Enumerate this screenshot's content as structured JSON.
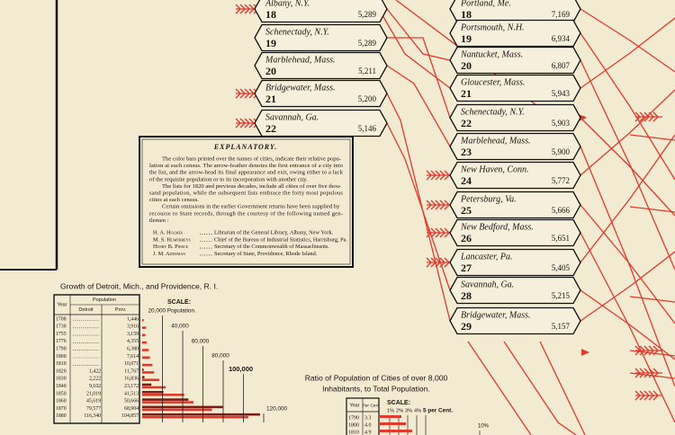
{
  "left_column": {
    "cities": [
      {
        "name": "Albany, N.Y.",
        "rank": 18,
        "population": "5,289"
      },
      {
        "name": "Schenectady, N.Y.",
        "rank": 19,
        "population": "5,289"
      },
      {
        "name": "Marblehead, Mass.",
        "rank": 20,
        "population": "5,211"
      },
      {
        "name": "Bridgewater, Mass.",
        "rank": 21,
        "population": "5,200"
      },
      {
        "name": "Savannah, Ga.",
        "rank": 22,
        "population": "5,146"
      }
    ]
  },
  "right_column": {
    "cities": [
      {
        "name": "Portland, Me.",
        "rank": 18,
        "population": "7,169"
      },
      {
        "name": "Portsmouth, N.H.",
        "rank": 19,
        "population": "6,934"
      },
      {
        "name": "Nantucket, Mass.",
        "rank": 20,
        "population": "6,807"
      },
      {
        "name": "Gloucester, Mass.",
        "rank": 21,
        "population": "5,943"
      },
      {
        "name": "Schenectady, N.Y.",
        "rank": 22,
        "population": "5,903"
      },
      {
        "name": "Marblehead, Mass.",
        "rank": 23,
        "population": "5,900"
      },
      {
        "name": "New Haven, Conn.",
        "rank": 24,
        "population": "5,772"
      },
      {
        "name": "Petersburg, Va.",
        "rank": 25,
        "population": "5,666"
      },
      {
        "name": "New Bedford, Mass.",
        "rank": 26,
        "population": "5,651"
      },
      {
        "name": "Lancaster, Pa.",
        "rank": 27,
        "population": "5,405"
      },
      {
        "name": "Savannah, Ga.",
        "rank": 28,
        "population": "5,215"
      },
      {
        "name": "Bridgewater, Mass.",
        "rank": 29,
        "population": "5,157"
      }
    ]
  },
  "explanatory": {
    "title": "EXPLANATORY.",
    "lines": [
      "The color bars printed over the names of cities, indicate their relative popu-",
      "lation at each census.  The arrow-feather denotes the first entrance of a city into",
      "the list, and the arrow-head its final appearance and exit, owing either to a lack",
      "of the requisite population or to its incorporation with another city.",
      "The lists for 1820 and previous decades, include all cities of over five thou-",
      "sand population, while the subsequent lists embrace the forty most populous",
      "cities at each census.",
      "Certain omissions in the earlier Government returns have been supplied by",
      "recourse to State records, through the courtesy of the following named gen-",
      "tlemen :"
    ],
    "credits": [
      {
        "name": "H. A. Holmes",
        "role": "Librarian of the General Library, Albany, New York."
      },
      {
        "name": "M. S. Humphreys",
        "role": "Chief of the Bureau of Industrial Statistics, Harrisburg, Pa."
      },
      {
        "name": "Henry B. Pierce",
        "role": "Secretary of the Commonwealth of Massachusetts."
      },
      {
        "name": "J. M. Addeman",
        "role": "Secretary of State, Providence, Rhode Island."
      }
    ]
  },
  "growth_chart": {
    "type": "bar",
    "title": "Growth of Detroit, Mich., and Providence, R. I.",
    "header": {
      "year": "Year",
      "population": "Population"
    },
    "scale_label": "SCALE:",
    "categories": [
      "1708",
      "1730",
      "1755",
      "1776",
      "1790",
      "1800",
      "1810",
      "1820",
      "1830",
      "1840",
      "1850",
      "1860",
      "1870",
      "1880"
    ],
    "series": [
      {
        "name": "Detroit",
        "color": "#7a1d14",
        "values": [
          null,
          null,
          null,
          null,
          null,
          null,
          null,
          1422,
          2222,
          9102,
          21019,
          45619,
          79577,
          116340
        ],
        "value_labels": [
          null,
          null,
          null,
          null,
          null,
          null,
          null,
          "1,422",
          "2,222",
          "9,102",
          "21,019",
          "45,619",
          "79,577",
          "116,340"
        ]
      },
      {
        "name": "Prov.",
        "color": "#e0392b",
        "values": [
          1446,
          3916,
          3159,
          4355,
          6380,
          7614,
          10071,
          11767,
          16836,
          23172,
          41513,
          50666,
          68904,
          104857
        ],
        "value_labels": [
          "1,446",
          "3,916",
          "3,159",
          "4,355",
          "6,380",
          "7,614",
          "10,071",
          "11,767",
          "16,836",
          "23,172",
          "41,513",
          "50,666",
          "68,904",
          "104,857"
        ]
      }
    ],
    "xlim": [
      0,
      120000
    ],
    "xticks": [
      {
        "value": 20000,
        "label": "20,000 Population."
      },
      {
        "value": 40000,
        "label": "40,000"
      },
      {
        "value": 60000,
        "label": "60,000"
      },
      {
        "value": 80000,
        "label": "80,000"
      },
      {
        "value": 100000,
        "label": "100,000"
      },
      {
        "value": 120000,
        "label": "120,000"
      }
    ]
  },
  "ratio_chart": {
    "title_lines": [
      "Ratio of Population of Cities of over 8,000",
      "Inhabitants, to Total Population."
    ],
    "header": {
      "year": "Year",
      "per_cent": "Per Cent"
    },
    "scale_label": "SCALE:",
    "scale_ticks": [
      "1%",
      "2%",
      "3%",
      "4%",
      "5 per Cent."
    ],
    "far_tick": "10%",
    "rows": [
      [
        "1790",
        "3.3"
      ],
      [
        "1800",
        "4.0"
      ],
      [
        "1810",
        "4.9"
      ]
    ]
  }
}
